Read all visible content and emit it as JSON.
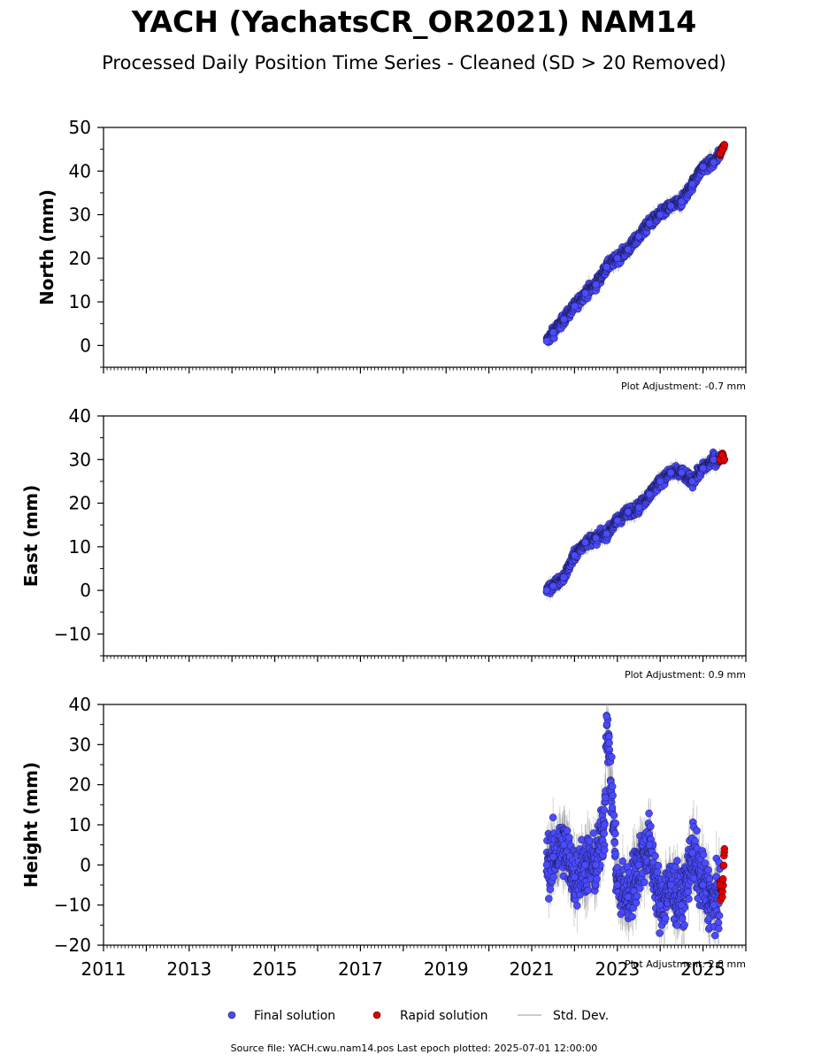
{
  "page": {
    "title": "YACH (YachatsCR_OR2021) NAM14",
    "subtitle": "Processed Daily Position Time Series - Cleaned (SD > 20 Removed)",
    "footer": "Source file: YACH.cwu.nam14.pos  Last epoch plotted: 2025-07-01 12:00:00"
  },
  "legend": {
    "final": "Final solution",
    "rapid": "Rapid solution",
    "std": "Std. Dev."
  },
  "colors": {
    "final": "#4a4aff",
    "rapid": "#e00000",
    "std": "#999999"
  },
  "chart_data": [
    {
      "type": "scatter",
      "ylabel": "North (mm)",
      "xlim": [
        2011,
        2026
      ],
      "ylim": [
        -5,
        50
      ],
      "yticks": [
        0,
        10,
        20,
        30,
        40,
        50
      ],
      "adjustment": "Plot Adjustment: -0.7 mm",
      "series": [
        {
          "name": "Final solution",
          "x": [
            2021.35,
            2021.5,
            2021.75,
            2022.0,
            2022.25,
            2022.5,
            2022.75,
            2023.0,
            2023.25,
            2023.5,
            2023.75,
            2024.0,
            2024.25,
            2024.5,
            2024.75,
            2025.0,
            2025.25,
            2025.4
          ],
          "y": [
            1,
            3,
            6,
            9,
            12,
            14,
            18,
            20,
            22,
            25,
            28,
            30,
            32,
            33,
            37,
            41,
            42,
            44
          ]
        },
        {
          "name": "Rapid solution",
          "x": [
            2025.4,
            2025.45,
            2025.5
          ],
          "y": [
            44,
            45,
            46
          ]
        }
      ]
    },
    {
      "type": "scatter",
      "ylabel": "East (mm)",
      "xlim": [
        2011,
        2026
      ],
      "ylim": [
        -15,
        40
      ],
      "yticks": [
        -10,
        0,
        10,
        20,
        30,
        40
      ],
      "adjustment": "Plot Adjustment: 0.9 mm",
      "series": [
        {
          "name": "Final solution",
          "x": [
            2021.35,
            2021.5,
            2021.75,
            2022.0,
            2022.25,
            2022.5,
            2022.75,
            2023.0,
            2023.25,
            2023.5,
            2023.75,
            2024.0,
            2024.25,
            2024.5,
            2024.75,
            2025.0,
            2025.25,
            2025.4
          ],
          "y": [
            0,
            1,
            3,
            8,
            11,
            12,
            13,
            16,
            18,
            19,
            22,
            25,
            27,
            27,
            25,
            28,
            30,
            30
          ]
        },
        {
          "name": "Rapid solution",
          "x": [
            2025.4,
            2025.45,
            2025.5
          ],
          "y": [
            30,
            31,
            30
          ]
        }
      ]
    },
    {
      "type": "scatter",
      "ylabel": "Height (mm)",
      "xlim": [
        2011,
        2026
      ],
      "ylim": [
        -20,
        40
      ],
      "yticks": [
        -20,
        -10,
        0,
        10,
        20,
        30,
        40
      ],
      "xticks": [
        2011,
        2013,
        2015,
        2017,
        2019,
        2021,
        2023,
        2025
      ],
      "adjustment": "Plot Adjustment: 2.8 mm",
      "series": [
        {
          "name": "Final solution",
          "x": [
            2021.35,
            2021.5,
            2021.75,
            2022.0,
            2022.25,
            2022.5,
            2022.7,
            2022.75,
            2023.0,
            2023.25,
            2023.5,
            2023.75,
            2024.0,
            2024.25,
            2024.5,
            2024.75,
            2025.0,
            2025.25,
            2025.4
          ],
          "y": [
            0,
            2,
            5,
            -3,
            0,
            0,
            10,
            37,
            -5,
            -8,
            0,
            5,
            -10,
            -5,
            -10,
            3,
            -5,
            -10,
            -7
          ]
        },
        {
          "name": "Rapid solution",
          "x": [
            2025.4,
            2025.45,
            2025.5
          ],
          "y": [
            -5,
            -8,
            4
          ]
        }
      ]
    }
  ]
}
